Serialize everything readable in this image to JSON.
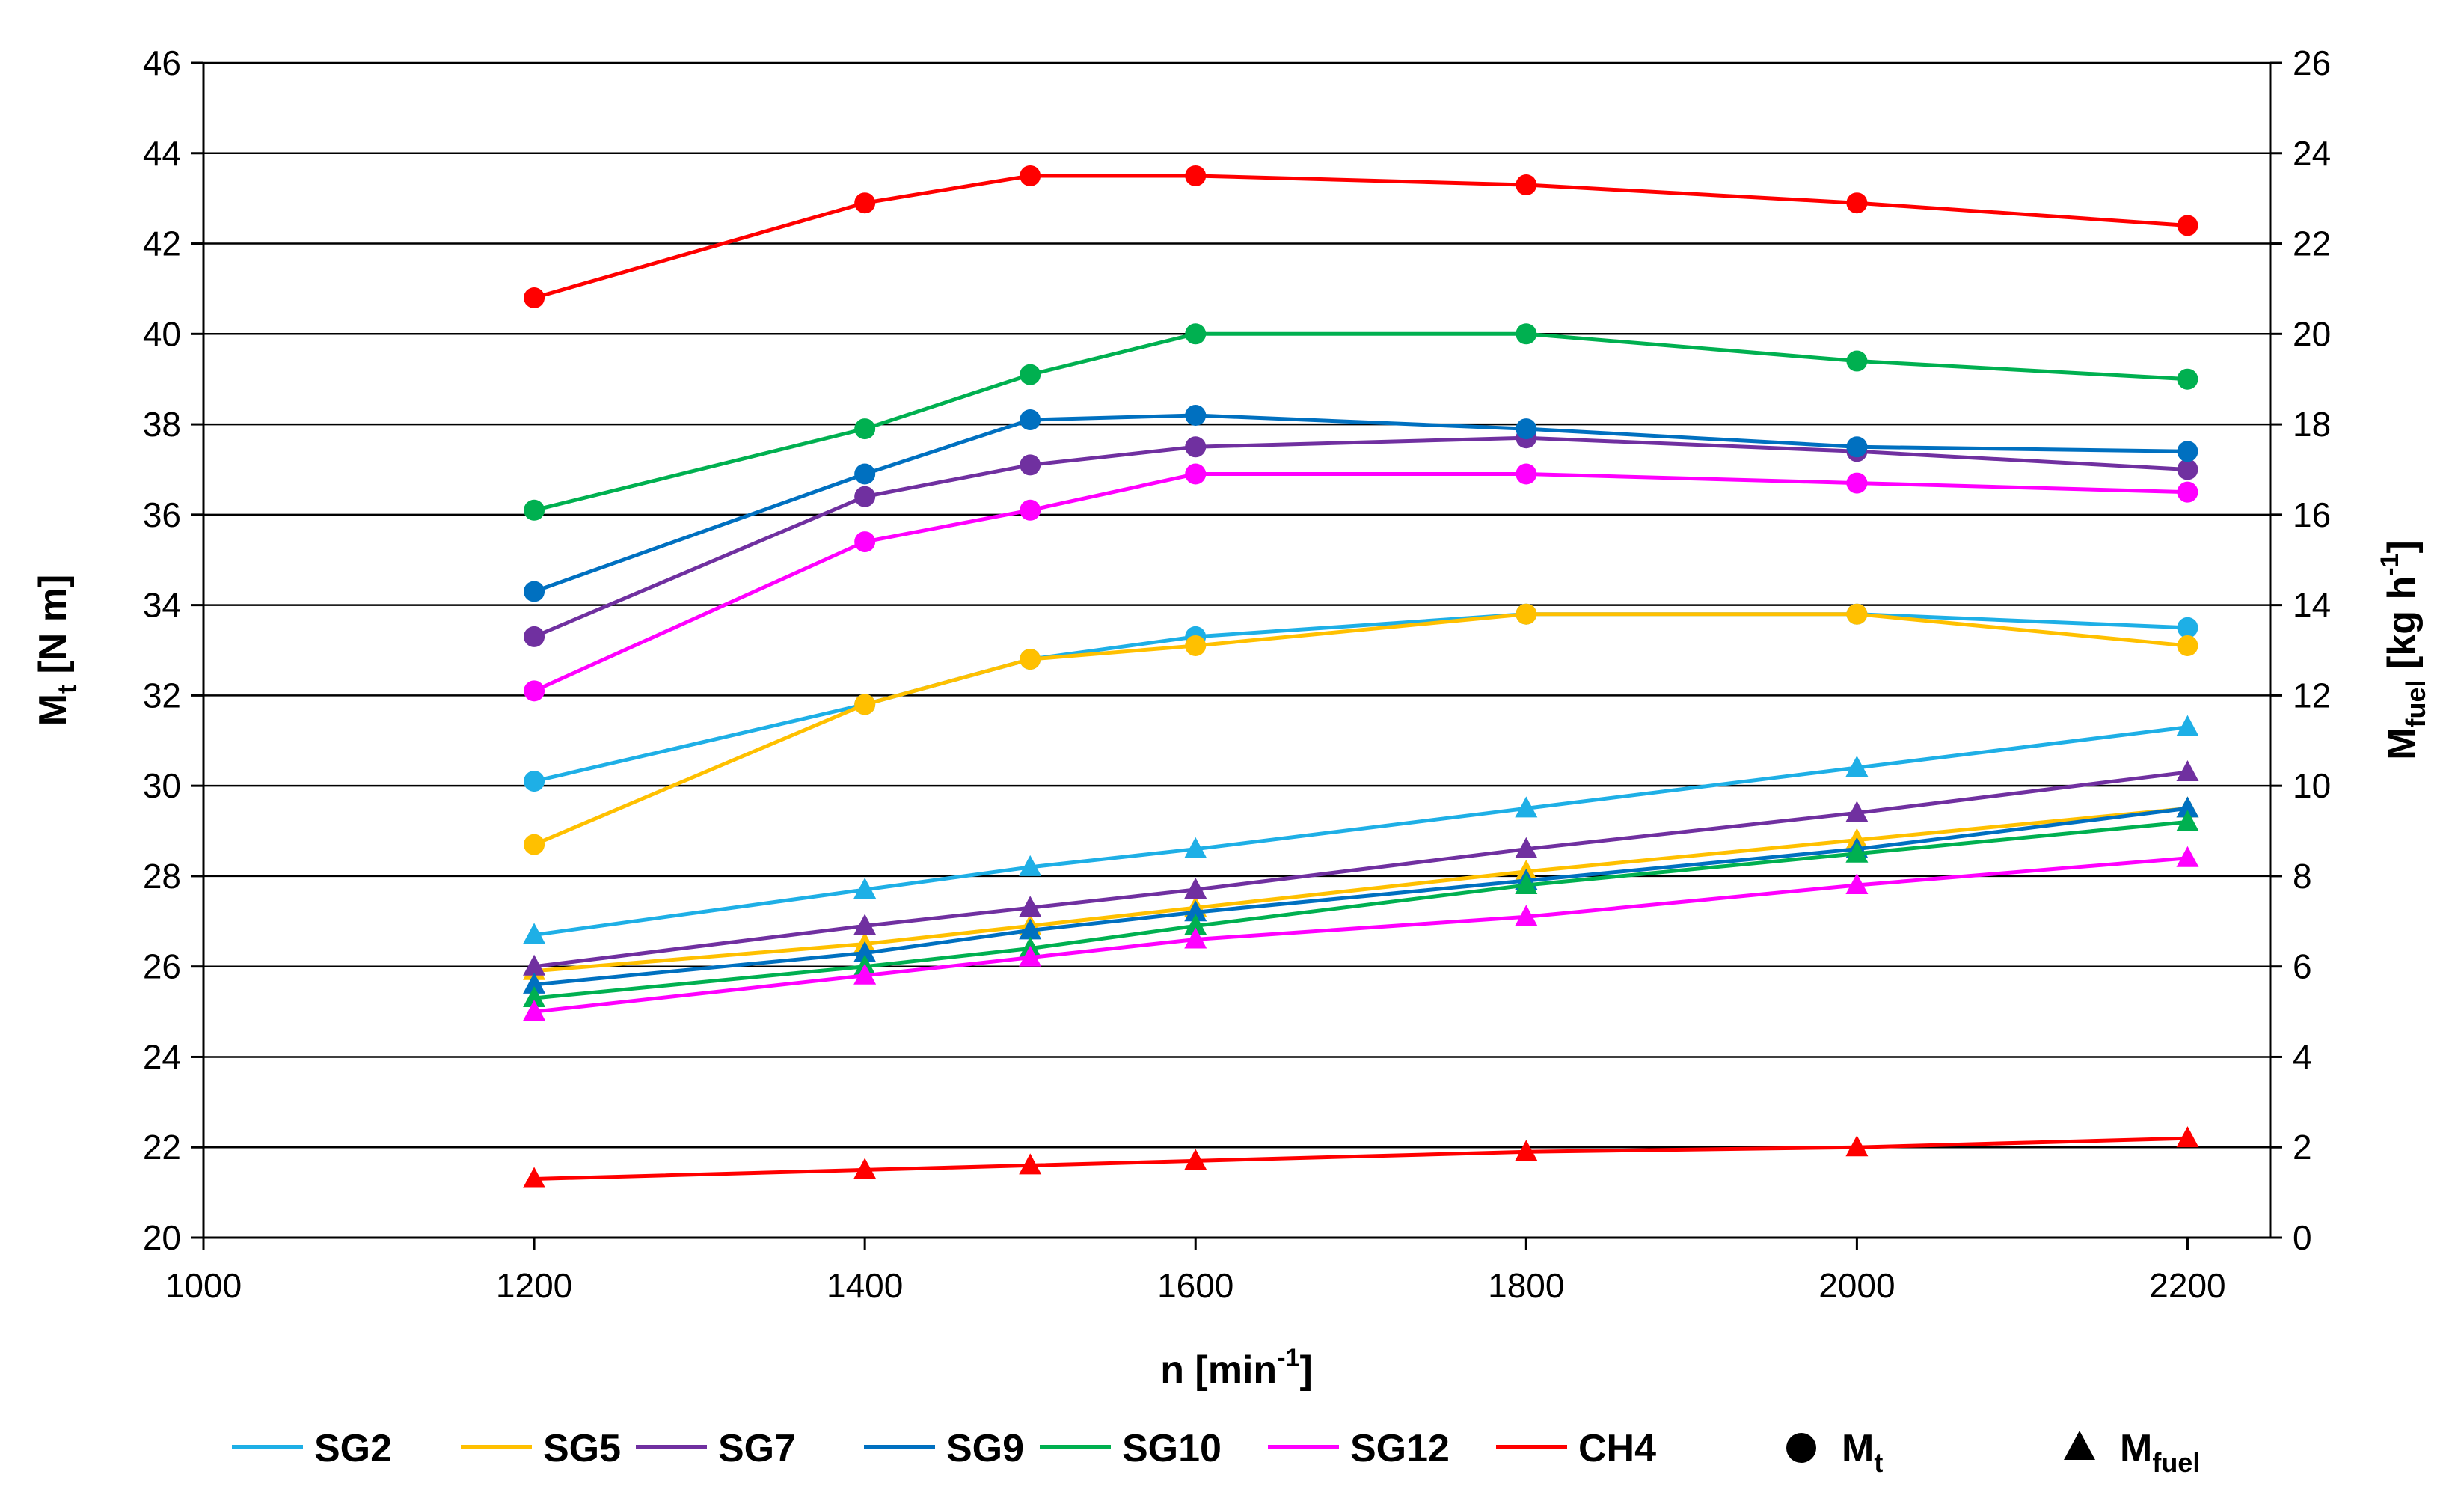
{
  "chart_data": {
    "type": "line",
    "x": [
      1200,
      1400,
      1500,
      1600,
      1800,
      2000,
      2200
    ],
    "xlabel": {
      "main": "n [min",
      "sup": "-1",
      "end": "]"
    },
    "ylabel_left": {
      "main": "M",
      "sub": "t",
      "rest": " [N m]"
    },
    "ylabel_right": {
      "main": "M",
      "sub": "fuel",
      "rest": " [kg h",
      "sup": "-1",
      "end": "]"
    },
    "xlim": [
      1000,
      2250
    ],
    "xticks": [
      "1000",
      "1200",
      "1400",
      "1600",
      "1800",
      "2000",
      "2200"
    ],
    "ylim_left": [
      20,
      46
    ],
    "yticks_left": [
      "20",
      "22",
      "24",
      "26",
      "28",
      "30",
      "32",
      "34",
      "36",
      "38",
      "40",
      "42",
      "44",
      "46"
    ],
    "ylim_right": [
      0,
      26
    ],
    "yticks_right": [
      "0",
      "2",
      "4",
      "6",
      "8",
      "10",
      "12",
      "14",
      "16",
      "18",
      "20",
      "22",
      "24",
      "26"
    ],
    "grid": "horizontal",
    "series": [
      {
        "name": "SG2",
        "color": "#1EAFE6",
        "mt": [
          30.1,
          31.8,
          32.8,
          33.3,
          33.8,
          33.8,
          33.5
        ],
        "mfuel": [
          6.7,
          7.7,
          8.2,
          8.6,
          9.5,
          10.4,
          11.3
        ]
      },
      {
        "name": "SG5",
        "color": "#FFC000",
        "mt": [
          28.7,
          31.8,
          32.8,
          33.1,
          33.8,
          33.8,
          33.1
        ],
        "mfuel": [
          5.9,
          6.5,
          6.9,
          7.3,
          8.1,
          8.8,
          9.5
        ]
      },
      {
        "name": "SG7",
        "color": "#7030A0",
        "mt": [
          33.3,
          36.4,
          37.1,
          37.5,
          37.7,
          37.4,
          37.0
        ],
        "mfuel": [
          6.0,
          6.9,
          7.3,
          7.7,
          8.6,
          9.4,
          10.3
        ]
      },
      {
        "name": "SG9",
        "color": "#0070C0",
        "mt": [
          34.3,
          36.9,
          38.1,
          38.2,
          37.9,
          37.5,
          37.4
        ],
        "mfuel": [
          5.6,
          6.3,
          6.8,
          7.2,
          7.9,
          8.6,
          9.5
        ]
      },
      {
        "name": "SG10",
        "color": "#00B050",
        "mt": [
          36.1,
          37.9,
          39.1,
          40.0,
          40.0,
          39.4,
          39.0
        ],
        "mfuel": [
          5.3,
          6.0,
          6.4,
          6.9,
          7.8,
          8.5,
          9.2
        ]
      },
      {
        "name": "SG12",
        "color": "#FF00FF",
        "mt": [
          32.1,
          35.4,
          36.1,
          36.9,
          36.9,
          36.7,
          36.5
        ],
        "mfuel": [
          5.0,
          5.8,
          6.2,
          6.6,
          7.1,
          7.8,
          8.4
        ]
      },
      {
        "name": "CH4",
        "color": "#FF0000",
        "mt": [
          40.8,
          42.9,
          43.5,
          43.5,
          43.3,
          42.9,
          42.4
        ],
        "mfuel": [
          1.3,
          1.5,
          1.6,
          1.7,
          1.9,
          2.0,
          2.2
        ]
      }
    ],
    "marker_legend": [
      {
        "symbol": "circle",
        "main": "M",
        "sub": "t"
      },
      {
        "symbol": "triangle",
        "main": "M",
        "sub": "fuel"
      }
    ]
  }
}
